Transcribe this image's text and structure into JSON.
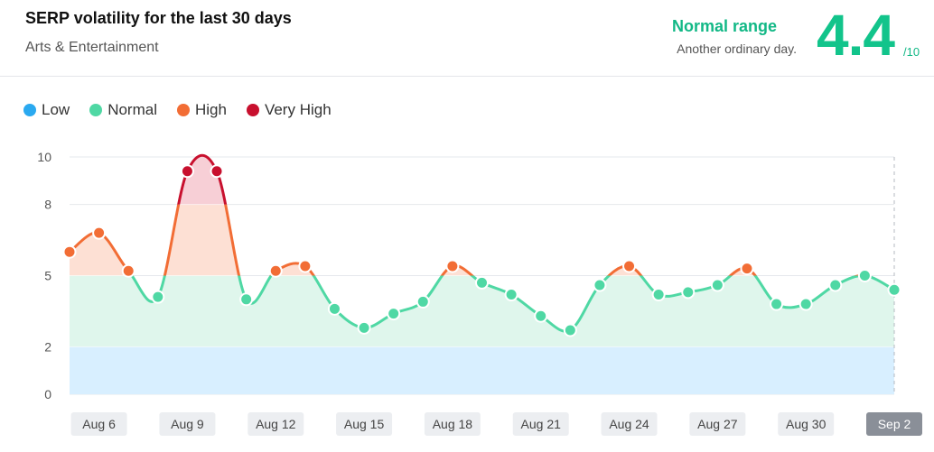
{
  "header": {
    "title": "SERP volatility for the last 30 days",
    "category": "Arts & Entertainment",
    "range_label": "Normal range",
    "range_description": "Another ordinary day.",
    "score": "4.4",
    "score_max": "/10"
  },
  "legend": [
    {
      "label": "Low",
      "color": "#2aa9f0"
    },
    {
      "label": "Normal",
      "color": "#4fd8a4"
    },
    {
      "label": "High",
      "color": "#f26d35"
    },
    {
      "label": "Very High",
      "color": "#c8102e"
    }
  ],
  "chart_data": {
    "type": "area",
    "ylim": [
      0,
      10
    ],
    "y_ticks": [
      "0",
      "2",
      "5",
      "8",
      "10"
    ],
    "x_ticks": [
      "Aug 6",
      "Aug 9",
      "Aug 12",
      "Aug 15",
      "Aug 18",
      "Aug 21",
      "Aug 24",
      "Aug 27",
      "Aug 30",
      "Sep 2"
    ],
    "selected_tick": "Sep 2",
    "bands": [
      {
        "name": "Low",
        "from": 0,
        "to": 2,
        "color": "#d8efff"
      },
      {
        "name": "Normal",
        "from": 2,
        "to": 5,
        "color": "#dff6ec"
      },
      {
        "name": "High",
        "from": 5,
        "to": 8,
        "color": "#fde0d4"
      },
      {
        "name": "Very High",
        "from": 8,
        "to": 10,
        "color": "#f7cfd6"
      }
    ],
    "x": [
      "Aug 5",
      "Aug 6",
      "Aug 7",
      "Aug 8",
      "Aug 9",
      "Aug 10",
      "Aug 11",
      "Aug 12",
      "Aug 13",
      "Aug 14",
      "Aug 15",
      "Aug 16",
      "Aug 17",
      "Aug 18",
      "Aug 19",
      "Aug 20",
      "Aug 21",
      "Aug 22",
      "Aug 23",
      "Aug 24",
      "Aug 25",
      "Aug 26",
      "Aug 27",
      "Aug 28",
      "Aug 29",
      "Aug 30",
      "Aug 31",
      "Sep 1",
      "Sep 2"
    ],
    "values": [
      6.0,
      6.8,
      5.2,
      4.1,
      9.4,
      9.4,
      4.0,
      5.2,
      5.4,
      3.6,
      2.8,
      3.4,
      3.9,
      5.4,
      4.7,
      4.2,
      3.3,
      2.7,
      4.6,
      5.4,
      4.2,
      4.3,
      4.6,
      5.3,
      3.8,
      3.8,
      4.6,
      5.0,
      4.4
    ]
  }
}
